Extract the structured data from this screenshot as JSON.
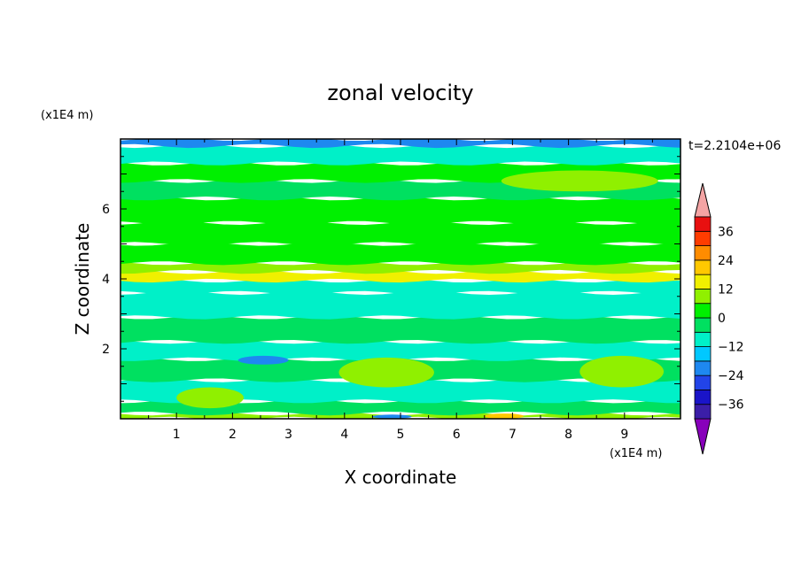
{
  "chart_data": {
    "type": "heatmap",
    "title": "zonal velocity",
    "xlabel": "X coordinate",
    "ylabel": "Z coordinate",
    "x_unit": "(x1E4 m)",
    "y_unit": "(x1E4 m)",
    "time_label": "t=2.2104e+06",
    "xlim": [
      0,
      10
    ],
    "ylim": [
      0,
      8
    ],
    "x_ticks": [
      1,
      2,
      3,
      4,
      5,
      6,
      7,
      8,
      9
    ],
    "y_ticks": [
      2,
      4,
      6
    ],
    "colorbar": {
      "levels": [
        -42,
        -36,
        -30,
        -24,
        -18,
        -12,
        -6,
        0,
        6,
        12,
        18,
        24,
        30,
        36,
        42
      ],
      "labels": [
        "36",
        "24",
        "12",
        "0",
        "−12",
        "−24",
        "−36"
      ],
      "label_values": [
        36,
        24,
        12,
        0,
        -12,
        -24,
        -36
      ],
      "colors": [
        "#8800bb",
        "#3b1ea8",
        "#1a14c8",
        "#2244e8",
        "#1e88f0",
        "#00c8ff",
        "#00f0c8",
        "#00e060",
        "#00f000",
        "#90f000",
        "#f0f000",
        "#ffc800",
        "#ff8c00",
        "#ff3c00",
        "#e81010",
        "#f4a4a4"
      ]
    },
    "bands": [
      {
        "z": [
          0.0,
          0.15
        ],
        "value": 10
      },
      {
        "z": [
          0.15,
          0.5
        ],
        "value": -3
      },
      {
        "z": [
          0.5,
          1.1
        ],
        "value": -9
      },
      {
        "z": [
          1.1,
          1.7
        ],
        "value": -2
      },
      {
        "z": [
          1.7,
          2.2
        ],
        "value": -8
      },
      {
        "z": [
          2.2,
          2.9
        ],
        "value": -4
      },
      {
        "z": [
          2.9,
          3.6
        ],
        "value": -8
      },
      {
        "z": [
          3.6,
          3.95
        ],
        "value": -7
      },
      {
        "z": [
          3.95,
          4.2
        ],
        "value": 12
      },
      {
        "z": [
          4.2,
          4.45
        ],
        "value": 8
      },
      {
        "z": [
          4.45,
          5.0
        ],
        "value": 4
      },
      {
        "z": [
          5.0,
          5.6
        ],
        "value": 1
      },
      {
        "z": [
          5.6,
          6.3
        ],
        "value": 2
      },
      {
        "z": [
          6.3,
          6.8
        ],
        "value": -4
      },
      {
        "z": [
          6.8,
          7.3
        ],
        "value": 3
      },
      {
        "z": [
          7.3,
          7.8
        ],
        "value": -7
      },
      {
        "z": [
          7.8,
          8.0
        ],
        "value": -20
      }
    ],
    "patches": [
      {
        "x": [
          3.9,
          5.6
        ],
        "z": [
          0.9,
          1.75
        ],
        "value": 8
      },
      {
        "x": [
          8.2,
          9.7
        ],
        "z": [
          0.9,
          1.8
        ],
        "value": 8
      },
      {
        "x": [
          1.0,
          2.2
        ],
        "z": [
          0.3,
          0.9
        ],
        "value": 6
      },
      {
        "x": [
          2.1,
          3.0
        ],
        "z": [
          1.55,
          1.8
        ],
        "value": -20
      },
      {
        "x": [
          6.5,
          7.2
        ],
        "z": [
          0.0,
          0.15
        ],
        "value": 20
      },
      {
        "x": [
          6.8,
          9.6
        ],
        "z": [
          6.5,
          7.1
        ],
        "value": 8
      },
      {
        "x": [
          4.5,
          5.2
        ],
        "z": [
          0.0,
          0.12
        ],
        "value": -20
      }
    ]
  }
}
